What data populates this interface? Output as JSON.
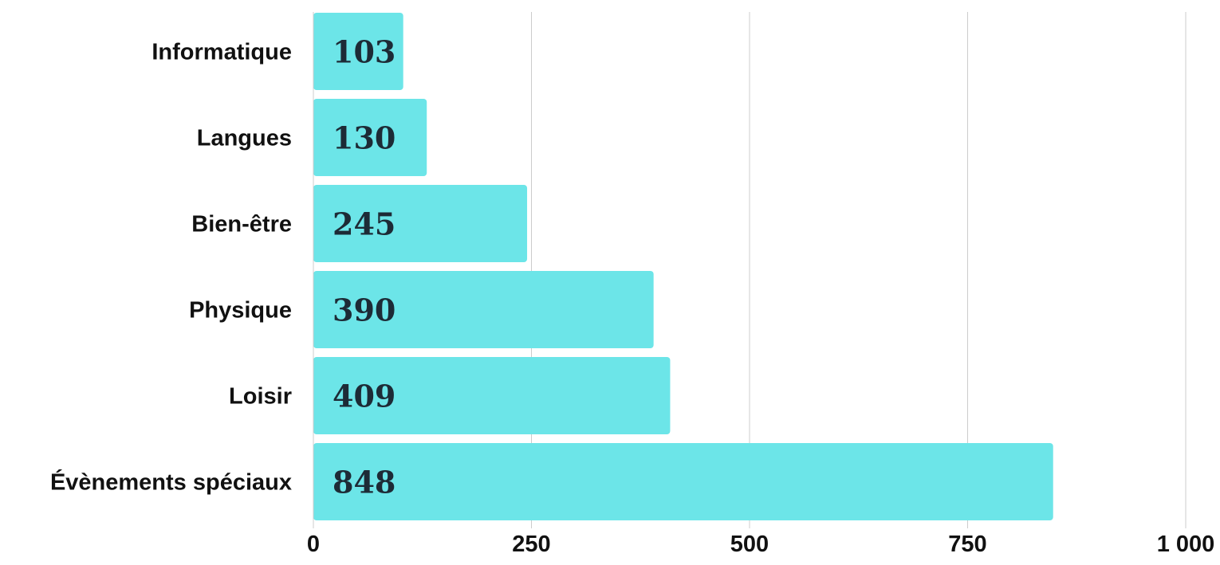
{
  "chart_data": {
    "type": "bar",
    "orientation": "horizontal",
    "categories": [
      "Informatique",
      "Langues",
      "Bien-être",
      "Physique",
      "Loisir",
      "Évènements spéciaux"
    ],
    "values": [
      103,
      130,
      245,
      390,
      409,
      848
    ],
    "data_labels": [
      "103",
      "130",
      "245",
      "390",
      "409",
      "848"
    ],
    "xlim": [
      0,
      1000
    ],
    "xticks": [
      0,
      250,
      500,
      750,
      1000
    ],
    "xtick_labels": [
      "0",
      "250",
      "500",
      "750",
      "1 000"
    ],
    "title": "",
    "xlabel": "",
    "ylabel": "",
    "grid": true,
    "legend": "none",
    "colors": {
      "bar": "#6ce5e8",
      "grid": "#cccccc",
      "axis": "#cccccc",
      "category_text": "#111111",
      "tick_text": "#111111",
      "data_label_text": "#1d2b36"
    }
  }
}
